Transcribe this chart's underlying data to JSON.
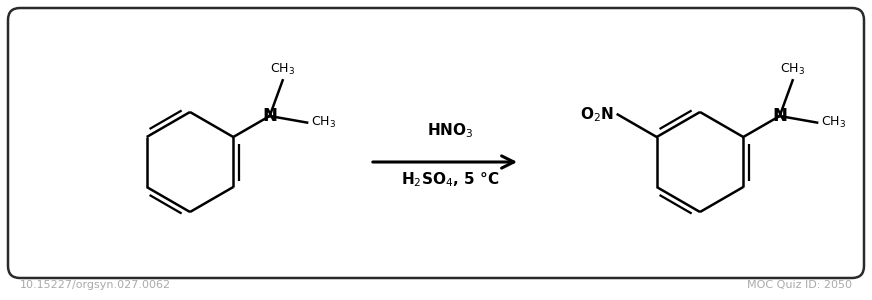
{
  "bg_color": "#ffffff",
  "border_color": "#2a2a2a",
  "text_color": "#000000",
  "footer_color": "#aaaaaa",
  "footer_left": "10.15227/orgsyn.027.0062",
  "footer_right": "MOC Quiz ID: 2050",
  "arrow_label_top": "HNO$_3$",
  "arrow_label_bottom": "H$_2$SO$_4$, 5 °C",
  "figsize": [
    8.72,
    3.0
  ],
  "dpi": 100
}
